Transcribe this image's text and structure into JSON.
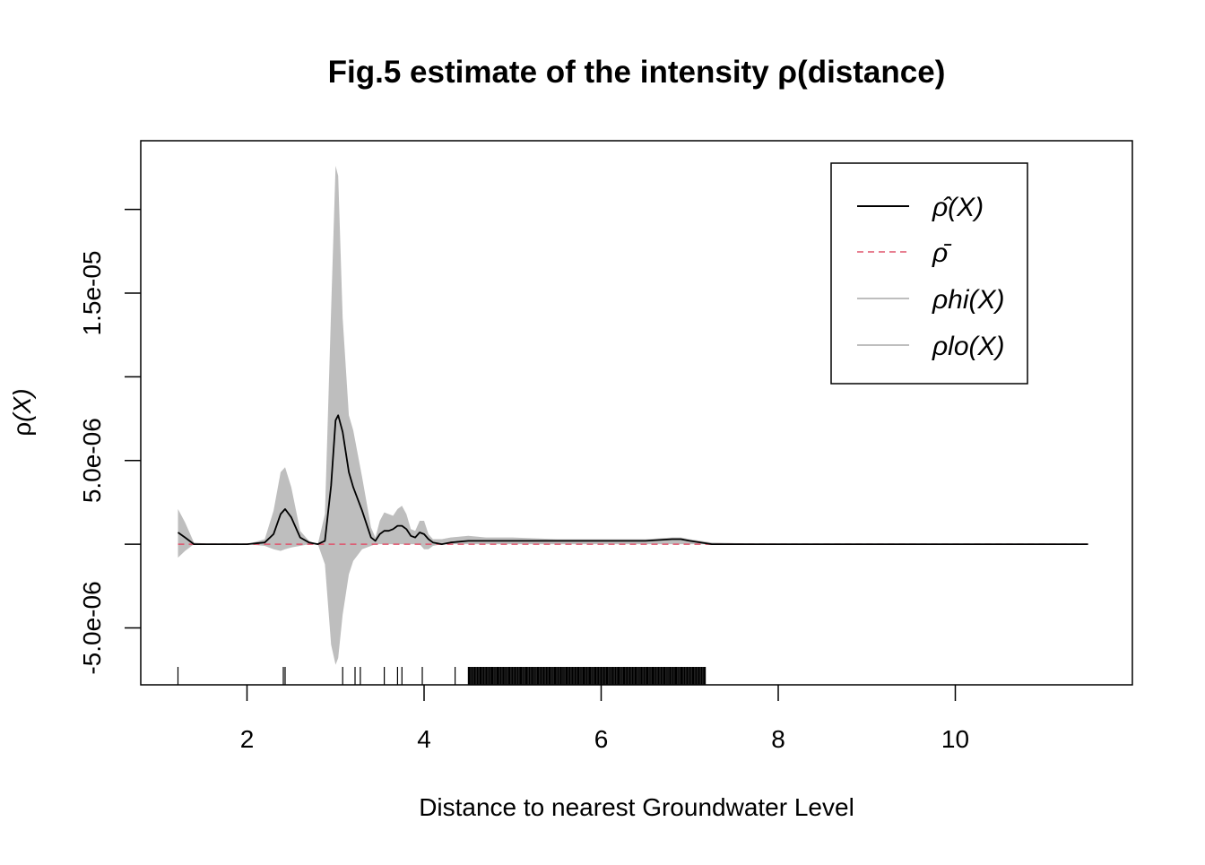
{
  "chart_data": {
    "type": "line",
    "title": "Fig.5 estimate of the intensity ρ(distance)",
    "xlabel": "Distance to nearest Groundwater Level",
    "ylabel_symbol": "ρ",
    "ylabel_arg": "(X)",
    "xlim": [
      0.8,
      12.0
    ],
    "ylim": [
      -8.4e-06,
      2.41e-05
    ],
    "x_ticks": [
      2,
      4,
      6,
      8,
      10
    ],
    "x_tick_labels": [
      "2",
      "4",
      "6",
      "8",
      "10"
    ],
    "y_ticks": [
      -5e-06,
      0,
      5e-06,
      1e-05,
      1.5e-05,
      2e-05
    ],
    "y_tick_labels": [
      "-5.0e-06",
      "",
      "5.0e-06",
      "",
      "1.5e-05",
      ""
    ],
    "legend_position": "top-right",
    "grid": false,
    "colors": {
      "estimate": "#000000",
      "mean": "#DF536B",
      "band": "#BEBEBE"
    },
    "series": [
      {
        "name": "ρ̂(X)",
        "style": "solid",
        "x": [
          1.22,
          1.3,
          1.4,
          1.6,
          2.0,
          2.2,
          2.3,
          2.38,
          2.43,
          2.5,
          2.6,
          2.7,
          2.8,
          2.88,
          2.95,
          3.0,
          3.03,
          3.08,
          3.15,
          3.2,
          3.3,
          3.4,
          3.45,
          3.5,
          3.55,
          3.6,
          3.65,
          3.7,
          3.75,
          3.8,
          3.85,
          3.9,
          3.95,
          4.0,
          4.05,
          4.1,
          4.2,
          4.3,
          4.5,
          4.7,
          5.0,
          5.5,
          6.0,
          6.2,
          6.5,
          6.8,
          6.9,
          7.0,
          7.25,
          8.0,
          10.0,
          11.5
        ],
        "y": [
          7e-07,
          4e-07,
          0,
          0,
          0,
          1e-07,
          6e-07,
          1.8e-06,
          2.1e-06,
          1.6e-06,
          4e-07,
          1e-07,
          0,
          2e-07,
          3.5e-06,
          7.4e-06,
          7.7e-06,
          6.7e-06,
          4.3e-06,
          3.4e-06,
          2e-06,
          4e-07,
          2e-07,
          6e-07,
          8e-07,
          8e-07,
          9e-07,
          1.1e-06,
          1.1e-06,
          9e-07,
          5e-07,
          4e-07,
          7e-07,
          6e-07,
          3e-07,
          1e-07,
          0,
          1e-07,
          2e-07,
          2e-07,
          2e-07,
          2e-07,
          2e-07,
          2e-07,
          2e-07,
          3e-07,
          3e-07,
          2e-07,
          0,
          0,
          0,
          0
        ]
      },
      {
        "name": "ρ̄",
        "style": "dashed",
        "x": [
          1.22,
          11.5
        ],
        "y": [
          0,
          0
        ]
      },
      {
        "name": "ρhi(X)",
        "style": "band-upper",
        "x": [
          1.22,
          1.3,
          1.4,
          1.6,
          2.0,
          2.2,
          2.3,
          2.38,
          2.43,
          2.5,
          2.6,
          2.7,
          2.8,
          2.88,
          2.95,
          3.0,
          3.03,
          3.08,
          3.15,
          3.2,
          3.3,
          3.4,
          3.45,
          3.5,
          3.55,
          3.6,
          3.65,
          3.7,
          3.75,
          3.8,
          3.85,
          3.9,
          3.95,
          4.0,
          4.05,
          4.1,
          4.2,
          4.3,
          4.5,
          4.7,
          5.0,
          5.5,
          6.0,
          6.2,
          6.5,
          6.8,
          6.9,
          7.0,
          7.25,
          8.0,
          10.0,
          11.5
        ],
        "y": [
          2.1e-06,
          1.3e-06,
          1e-07,
          0,
          0,
          3e-07,
          2e-06,
          4.3e-06,
          4.6e-06,
          3.4e-06,
          8e-07,
          2e-07,
          0,
          1.8e-06,
          1.4e-05,
          2.26e-05,
          2.2e-05,
          1.35e-05,
          7.7e-06,
          6.8e-06,
          4e-06,
          1e-06,
          4e-07,
          1.4e-06,
          1.9e-06,
          1.8e-06,
          1.7e-06,
          2.1e-06,
          2.3e-06,
          1.8e-06,
          9e-07,
          8e-07,
          1.4e-06,
          1.4e-06,
          6e-07,
          3e-07,
          3e-07,
          4e-07,
          5e-07,
          4e-07,
          4e-07,
          3e-07,
          3e-07,
          3e-07,
          3e-07,
          4e-07,
          4e-07,
          3e-07,
          1e-07,
          0,
          0,
          0
        ]
      },
      {
        "name": "ρlo(X)",
        "style": "band-lower",
        "x": [
          1.22,
          1.3,
          1.4,
          1.6,
          2.0,
          2.2,
          2.3,
          2.38,
          2.43,
          2.5,
          2.6,
          2.7,
          2.8,
          2.88,
          2.95,
          3.0,
          3.03,
          3.08,
          3.15,
          3.2,
          3.3,
          3.4,
          3.45,
          3.5,
          3.55,
          3.6,
          3.65,
          3.7,
          3.75,
          3.8,
          3.85,
          3.9,
          3.95,
          4.0,
          4.05,
          4.1,
          4.2,
          4.3,
          4.5,
          4.7,
          5.0,
          5.5,
          6.0,
          6.2,
          6.5,
          6.8,
          6.9,
          7.0,
          7.25,
          8.0,
          10.0,
          11.5
        ],
        "y": [
          -8e-07,
          -4e-07,
          0,
          0,
          0,
          -1e-07,
          -3e-07,
          -4e-07,
          -3e-07,
          -2e-07,
          -1e-07,
          0,
          0,
          -1.2e-06,
          -6e-06,
          -7.2e-06,
          -6.8e-06,
          -4.2e-06,
          -1.8e-06,
          -1e-06,
          -3e-07,
          -1e-07,
          0,
          0,
          0,
          0,
          0,
          0,
          0,
          0,
          0,
          0,
          0,
          -3e-07,
          -3e-07,
          -1e-07,
          0,
          0,
          0,
          0,
          0,
          0,
          0,
          0,
          0,
          0,
          0,
          0,
          0,
          0,
          0,
          0
        ]
      }
    ],
    "rug": {
      "sparse_x": [
        1.22,
        2.41,
        2.43,
        3.08,
        3.22,
        3.28,
        3.55,
        3.7,
        3.75,
        3.98,
        4.35
      ],
      "dense_from": 4.5,
      "dense_to": 7.18
    }
  }
}
